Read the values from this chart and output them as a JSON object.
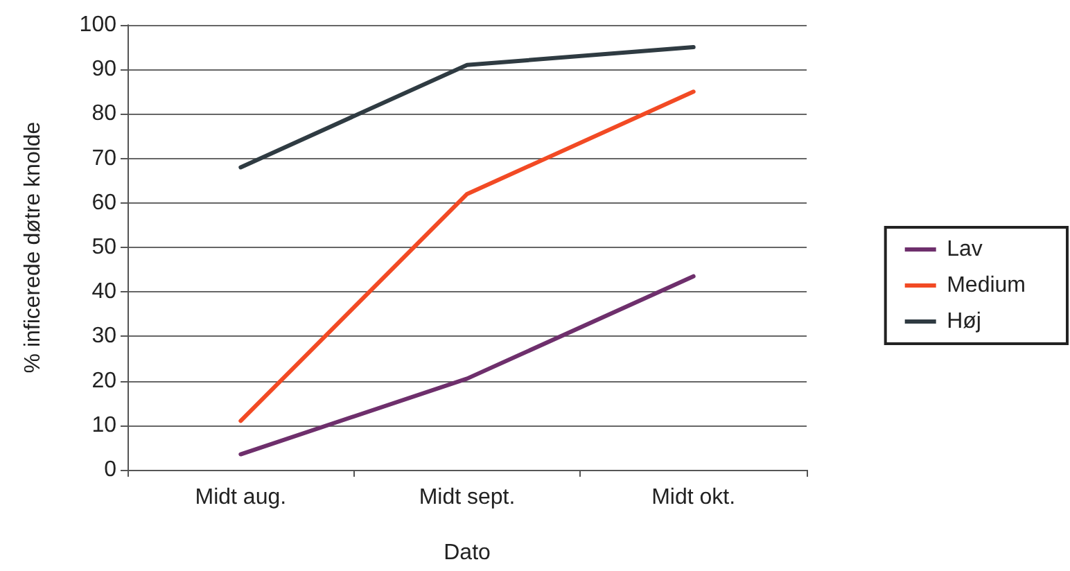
{
  "chart_data": {
    "type": "line",
    "xlabel": "Dato",
    "ylabel": "% inficerede døtre knolde",
    "categories": [
      "Midt aug.",
      "Midt sept.",
      "Midt okt."
    ],
    "series": [
      {
        "name": "Lav",
        "color": "#6e2f6c",
        "values": [
          3.5,
          20.5,
          43.5
        ]
      },
      {
        "name": "Medium",
        "color": "#f24a24",
        "values": [
          11,
          62,
          85
        ]
      },
      {
        "name": "Høj",
        "color": "#2f3b42",
        "values": [
          68,
          91,
          95
        ]
      }
    ],
    "ylim": [
      0,
      100
    ],
    "yticks": [
      0,
      10,
      20,
      30,
      40,
      50,
      60,
      70,
      80,
      90,
      100
    ],
    "grid": "y",
    "legend": "right",
    "marker": "none",
    "line_style": "solid"
  }
}
